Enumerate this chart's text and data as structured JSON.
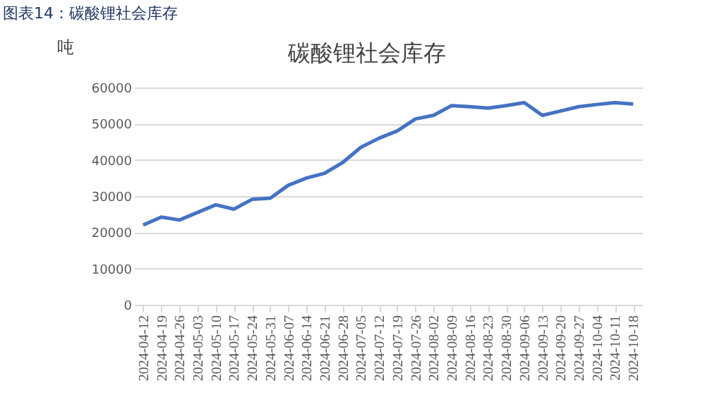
{
  "chart_data": {
    "type": "line",
    "title": "碳酸锂社会库存",
    "ylabel": "吨",
    "annotations": [
      "图表14：碳酸锂社会库存"
    ],
    "categories": [
      "2024-04-12",
      "2024-04-19",
      "2024-04-26",
      "2024-05-03",
      "2024-05-10",
      "2024-05-17",
      "2024-05-24",
      "2024-05-31",
      "2024-06-07",
      "2024-06-14",
      "2024-06-21",
      "2024-06-28",
      "2024-07-05",
      "2024-07-12",
      "2024-07-19",
      "2024-07-26",
      "2024-08-02",
      "2024-08-09",
      "2024-08-16",
      "2024-08-23",
      "2024-08-30",
      "2024-09-06",
      "2024-09-13",
      "2024-09-20",
      "2024-09-27",
      "2024-10-04",
      "2024-10-11",
      "2024-10-18"
    ],
    "series": [
      {
        "color": "#4472c4",
        "values": [
          22000,
          24200,
          23400,
          25500,
          27600,
          26400,
          29100,
          29400,
          33000,
          35000,
          36300,
          39300,
          43500,
          46000,
          48000,
          51300,
          52300,
          55000,
          54700,
          54300,
          55000,
          55800,
          52300,
          53500,
          54700,
          55300,
          55800,
          55400
        ]
      }
    ],
    "ylim": [
      0,
      60000
    ],
    "yticks": [
      0,
      10000,
      20000,
      30000,
      40000,
      50000,
      60000
    ],
    "grid": "y",
    "marker": "none",
    "line_style": "solid"
  }
}
